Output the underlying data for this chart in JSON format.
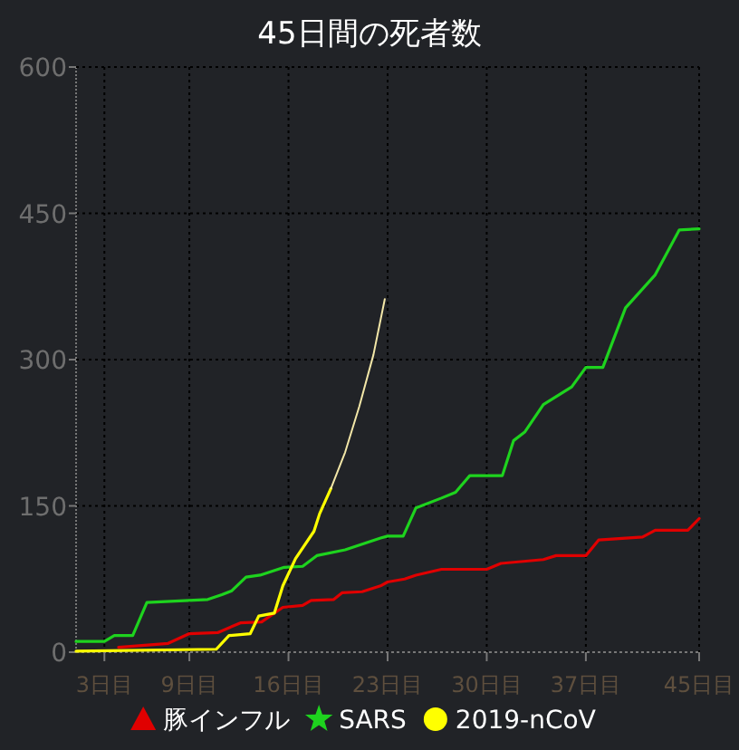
{
  "chart_data": {
    "type": "line",
    "title": "45日間の死者数",
    "xlim": [
      1,
      45
    ],
    "xticks": [
      {
        "value": 3,
        "label": "3日目"
      },
      {
        "value": 9,
        "label": "9日目"
      },
      {
        "value": 16,
        "label": "16日目"
      },
      {
        "value": 23,
        "label": "23日目"
      },
      {
        "value": 30,
        "label": "30日目"
      },
      {
        "value": 37,
        "label": "37日目"
      },
      {
        "value": 45,
        "label": "45日目"
      }
    ],
    "ylim": [
      0,
      600
    ],
    "yticks": [
      0,
      150,
      300,
      450,
      600
    ],
    "grid": true,
    "legend": "bottom",
    "line_style": "solid",
    "series": [
      {
        "name": "豚インフル",
        "color": "#e00000",
        "x": [
          4,
          7.5,
          9,
          11,
          12.6,
          14.1,
          15.6,
          17,
          17.6,
          19.2,
          19.8,
          21.2,
          22.5,
          23,
          24.2,
          25,
          26.8,
          30,
          31,
          34,
          34.9,
          37,
          37.9,
          41,
          41.9,
          44.2,
          45
        ],
        "values": [
          5,
          9,
          19,
          20,
          30,
          31,
          46,
          48,
          53,
          54,
          61,
          62,
          68,
          72,
          75,
          79,
          85,
          85,
          91,
          95,
          99,
          99,
          115,
          118,
          125,
          125,
          137
        ]
      },
      {
        "name": "SARS",
        "color": "#1ed31e",
        "x": [
          1,
          3,
          3.7,
          5,
          6,
          10.3,
          11.3,
          12,
          13,
          14,
          15.7,
          17,
          18,
          20,
          22.5,
          23,
          24.1,
          25,
          26.8,
          27.8,
          28.8,
          31.1,
          31.9,
          32.7,
          34,
          36,
          37,
          38.2,
          39.8,
          41.9,
          43.6,
          45
        ],
        "values": [
          11,
          11,
          17,
          17,
          51,
          54,
          59,
          63,
          77,
          79,
          87,
          88,
          99,
          105,
          117,
          119,
          119,
          148,
          158,
          164,
          181,
          181,
          217,
          226,
          254,
          272,
          292,
          292,
          353,
          387,
          433,
          434
        ]
      },
      {
        "name": "2019-nCoV",
        "color": "#ffff00",
        "x": [
          1,
          10.9,
          11.8,
          13.3,
          13.9,
          15,
          15.6,
          16.5,
          17.8,
          18.2,
          19
        ],
        "values": [
          1,
          3,
          17,
          19,
          37,
          40,
          68,
          96,
          124,
          142,
          168
        ]
      },
      {
        "color": "#f3e7a8",
        "x": [
          19,
          20,
          21,
          22,
          22.8
        ],
        "values": [
          168,
          205,
          252,
          305,
          362
        ]
      }
    ]
  }
}
